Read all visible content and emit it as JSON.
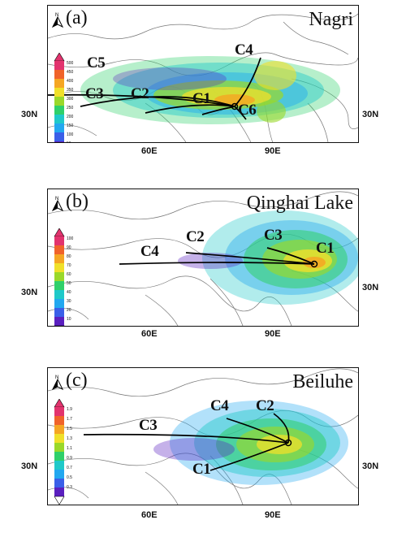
{
  "panels": [
    {
      "label": "(a)",
      "site": "Nagri",
      "colorbar_ticks": [
        "500",
        "450",
        "400",
        "350",
        "300",
        "250",
        "200",
        "150",
        "100",
        "50"
      ],
      "clusters": [
        "C5",
        "C4",
        "C3",
        "C2",
        "C1",
        "C6"
      ],
      "lat_label": "30N",
      "lon_labels": [
        "60E",
        "90E"
      ]
    },
    {
      "label": "(b)",
      "site": "Qinghai Lake",
      "colorbar_ticks": [
        "100",
        "90",
        "80",
        "70",
        "60",
        "50",
        "40",
        "30",
        "20",
        "10"
      ],
      "clusters": [
        "C4",
        "C2",
        "C3",
        "C1"
      ],
      "lat_label": "30N",
      "lon_labels": [
        "60E",
        "90E"
      ]
    },
    {
      "label": "(c)",
      "site": "Beiluhe",
      "colorbar_ticks": [
        "1.9",
        "1.7",
        "1.5",
        "1.3",
        "1.1",
        "0.9",
        "0.7",
        "0.5",
        "0.3"
      ],
      "clusters": [
        "C4",
        "C2",
        "C3",
        "C1"
      ],
      "lat_label": "30N",
      "lon_labels": [
        "60E",
        "90E"
      ]
    }
  ],
  "colors": {
    "palette": [
      "#5a1fbf",
      "#3a5fe8",
      "#22a8f0",
      "#1fc9c9",
      "#2fd06a",
      "#9ad82a",
      "#f0e02a",
      "#f5a623",
      "#f0632a",
      "#e2336e"
    ]
  }
}
